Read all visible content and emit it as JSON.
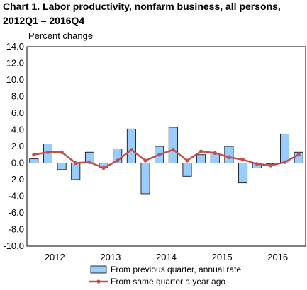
{
  "chart_data": {
    "type": "bar",
    "title_line1": "Chart  1. Labor productivity, nonfarm business, all persons,",
    "title_line2": "2012Q1 – 2016Q4",
    "ylabel": "Percent change",
    "ylim": [
      -10,
      14
    ],
    "yticks": [
      "14.0",
      "12.0",
      "10.0",
      "8.0",
      "6.0",
      "4.0",
      "2.0",
      "0.0",
      "-2.0",
      "-4.0",
      "-6.0",
      "-8.0",
      "-10.0"
    ],
    "year_labels": [
      "2012",
      "2013",
      "2014",
      "2015",
      "2016"
    ],
    "quarters": [
      "2012Q1",
      "2012Q2",
      "2012Q3",
      "2012Q4",
      "2013Q1",
      "2013Q2",
      "2013Q3",
      "2013Q4",
      "2014Q1",
      "2014Q2",
      "2014Q3",
      "2014Q4",
      "2015Q1",
      "2015Q2",
      "2015Q3",
      "2015Q4",
      "2016Q1",
      "2016Q2",
      "2016Q3",
      "2016Q4"
    ],
    "series": [
      {
        "name": "From previous quarter, annual rate",
        "type": "bar",
        "color": "#99ccff",
        "values": [
          0.5,
          2.3,
          -0.8,
          -2.0,
          1.3,
          -0.5,
          1.7,
          4.1,
          -3.7,
          2.0,
          4.3,
          -1.6,
          1.0,
          1.2,
          2.0,
          -2.4,
          -0.6,
          -0.1,
          3.5,
          1.3
        ]
      },
      {
        "name": "From same quarter a year ago",
        "type": "line",
        "color": "#c0504d",
        "values": [
          1.0,
          1.3,
          1.3,
          0.0,
          0.1,
          -0.6,
          0.3,
          1.6,
          0.3,
          1.0,
          1.6,
          0.3,
          1.4,
          1.2,
          0.7,
          0.4,
          -0.1,
          -0.3,
          0.1,
          1.0
        ]
      }
    ],
    "grid": false,
    "legend_position": "bottom"
  }
}
